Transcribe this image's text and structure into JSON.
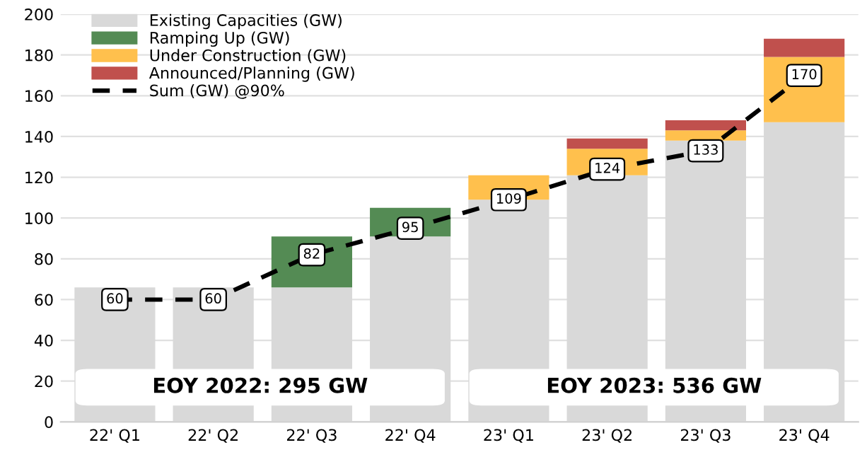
{
  "chart_data": {
    "type": "bar",
    "stacked": true,
    "categories": [
      "22' Q1",
      "22' Q2",
      "22' Q3",
      "22' Q4",
      "23' Q1",
      "23' Q2",
      "23' Q3",
      "23' Q4"
    ],
    "series": [
      {
        "name": "Existing Capacities (GW)",
        "color": "#d9d9d9",
        "values": [
          66,
          66,
          66,
          91,
          109,
          121,
          138,
          147
        ]
      },
      {
        "name": "Ramping Up (GW)",
        "color": "#548b54",
        "values": [
          0,
          0,
          25,
          14,
          0,
          0,
          0,
          0
        ]
      },
      {
        "name": "Under Construction (GW)",
        "color": "#ffc04d",
        "values": [
          0,
          0,
          0,
          0,
          12,
          13,
          5,
          32
        ]
      },
      {
        "name": "Announced/Planning (GW)",
        "color": "#c0504d",
        "values": [
          0,
          0,
          0,
          0,
          0,
          5,
          5,
          9
        ]
      },
      {
        "name": "Sum (GW) @90%",
        "type": "line",
        "color": "#000000",
        "line_style": "dashed",
        "marker": "square",
        "values": [
          60,
          60,
          82,
          95,
          109,
          124,
          133,
          170
        ],
        "value_labels": [
          "60",
          "60",
          "82",
          "95",
          "109",
          "124",
          "133",
          "170"
        ]
      }
    ],
    "annotations": [
      "EOY 2022: 295 GW",
      "EOY 2023: 536 GW"
    ],
    "ylim": [
      0,
      200
    ],
    "yticks": [
      0,
      20,
      40,
      60,
      80,
      100,
      120,
      140,
      160,
      180,
      200
    ],
    "grid": "y",
    "legend": "top left"
  }
}
